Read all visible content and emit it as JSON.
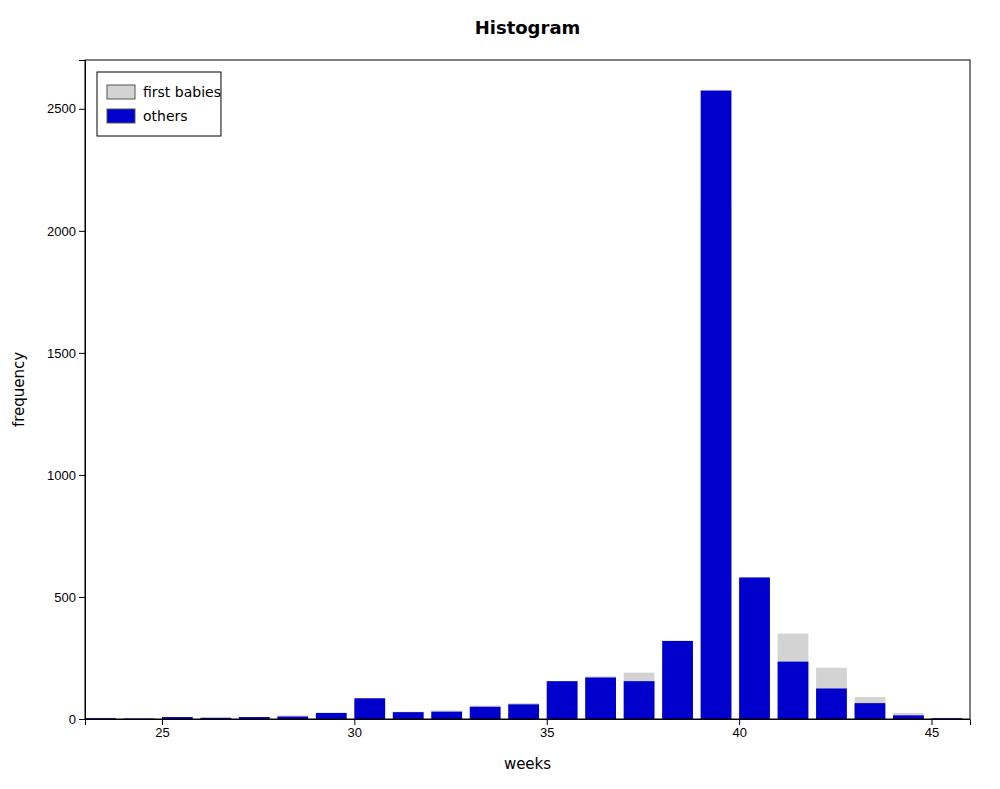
{
  "chart_data": {
    "type": "bar",
    "title": "Histogram",
    "xlabel": "weeks",
    "ylabel": "frequency",
    "x": [
      23,
      24,
      25,
      26,
      27,
      28,
      29,
      30,
      31,
      32,
      33,
      34,
      35,
      36,
      37,
      38,
      39,
      40,
      41,
      42,
      43,
      44,
      45
    ],
    "series": [
      {
        "name": "first babies",
        "color": "#d3d3d3",
        "values": [
          5,
          3,
          5,
          5,
          8,
          15,
          20,
          75,
          30,
          35,
          55,
          65,
          155,
          175,
          190,
          275,
          2100,
          530,
          350,
          210,
          90,
          25,
          5
        ]
      },
      {
        "name": "others",
        "color": "#0000cc",
        "values": [
          3,
          2,
          8,
          5,
          8,
          10,
          25,
          85,
          28,
          30,
          50,
          60,
          155,
          170,
          155,
          320,
          2575,
          580,
          235,
          125,
          65,
          15,
          3
        ]
      }
    ],
    "xlim": [
      23,
      46
    ],
    "ylim": [
      0,
      2700
    ],
    "xticks": [
      25,
      30,
      35,
      40,
      45
    ],
    "yticks": [
      0,
      500,
      1000,
      1500,
      2000,
      2500
    ],
    "grid": false,
    "legend": "upper left"
  }
}
